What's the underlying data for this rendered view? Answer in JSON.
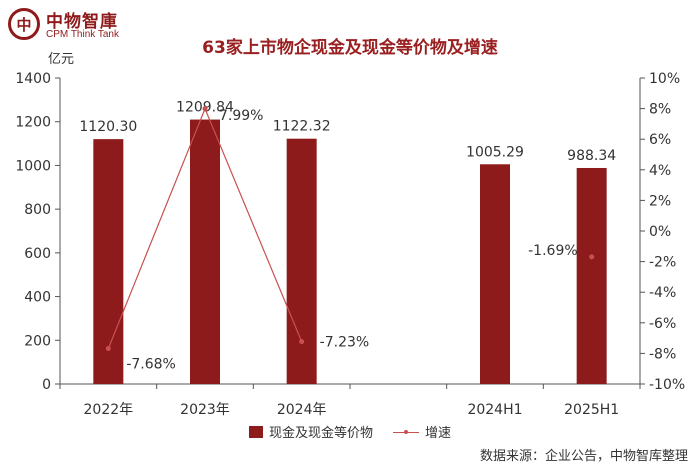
{
  "header": {
    "logo_mark": "中",
    "logo_name": "中物智庫",
    "logo_en": "CPM Think Tank"
  },
  "chart_data": {
    "type": "bar",
    "title": "63家上市物企现金及现金等价物及增速",
    "unit_label": "亿元",
    "categories": [
      "2022年",
      "2023年",
      "2024年",
      "",
      "2024H1",
      "2025H1"
    ],
    "series": [
      {
        "name": "现金及现金等价物",
        "type": "bar",
        "axis": "left",
        "color": "#8e1b1b",
        "values": [
          1120.3,
          1209.84,
          1122.32,
          null,
          1005.29,
          988.34
        ],
        "labels": [
          "1120.30",
          "1209.84",
          "1122.32",
          "",
          "1005.29",
          "988.34"
        ]
      },
      {
        "name": "增速",
        "type": "line",
        "axis": "right",
        "color": "#c85050",
        "values": [
          -7.68,
          7.99,
          -7.23,
          null,
          null,
          -1.69
        ],
        "labels": [
          "-7.68%",
          "7.99%",
          "-7.23%",
          "",
          "",
          "-1.69%"
        ]
      }
    ],
    "y_left": {
      "min": 0,
      "max": 1400,
      "step": 200,
      "ticks": [
        "0",
        "200",
        "400",
        "600",
        "800",
        "1000",
        "1200",
        "1400"
      ]
    },
    "y_right": {
      "min": -10,
      "max": 10,
      "step": 2,
      "ticks": [
        "-10%",
        "-8%",
        "-6%",
        "-4%",
        "-2%",
        "0%",
        "2%",
        "4%",
        "6%",
        "8%",
        "10%"
      ]
    },
    "grid": false,
    "legend_position": "bottom"
  },
  "footer": {
    "source": "数据来源：企业公告，中物智库整理"
  }
}
